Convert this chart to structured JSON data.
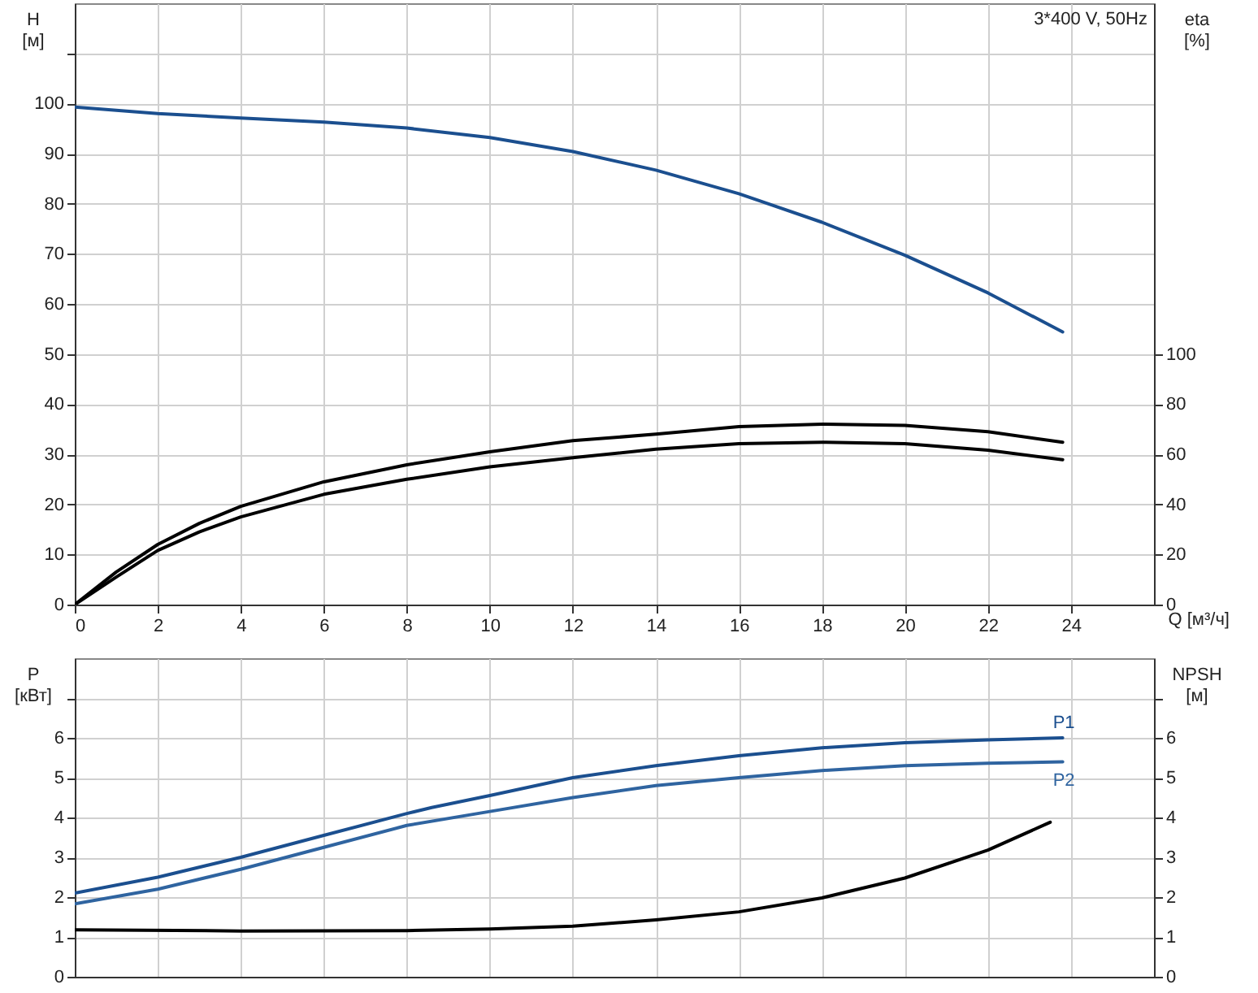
{
  "chart_data": [
    {
      "type": "line",
      "xlabel": "Q [м³/ч]",
      "ylabel": "H [м]",
      "y2label": "eta [%]",
      "xlim": [
        0,
        26
      ],
      "xticks": [
        0,
        2,
        4,
        6,
        8,
        10,
        12,
        14,
        16,
        18,
        20,
        22,
        24
      ],
      "ylim": [
        0,
        120
      ],
      "yticks": [
        0,
        10,
        20,
        30,
        40,
        50,
        60,
        70,
        80,
        90,
        100,
        {
          "value": 110,
          "label": null
        }
      ],
      "y2lim": [
        0,
        240
      ],
      "y2ticks": [
        0,
        20,
        40,
        60,
        80,
        100
      ],
      "grid": true,
      "annotations": [
        "3*400 V, 50Hz"
      ],
      "series": [
        {
          "color": "#1b4f8f",
          "x": [
            0,
            2,
            4,
            6,
            8,
            10,
            12,
            14,
            16,
            18,
            20,
            22,
            23.8
          ],
          "values": [
            99.3,
            98,
            97.1,
            96.3,
            95.1,
            93.2,
            90.4,
            86.7,
            82,
            76.3,
            69.7,
            62.2,
            54.4
          ]
        },
        {
          "color": "#000000",
          "axis": "y2",
          "x": [
            0,
            1,
            2,
            3,
            4,
            6,
            8,
            10,
            12,
            14,
            16,
            18,
            20,
            22,
            23.8
          ],
          "values": [
            0,
            13,
            24,
            32.4,
            39.2,
            49,
            55.8,
            61,
            65.4,
            68,
            71,
            72,
            71.5,
            69,
            64.8
          ]
        },
        {
          "color": "#000000",
          "axis": "y2",
          "x": [
            0,
            1,
            2,
            3,
            4,
            6,
            8,
            10,
            12,
            14,
            16,
            18,
            20,
            22,
            23.8
          ],
          "values": [
            0,
            11,
            21.6,
            29,
            35,
            44,
            50,
            55,
            58.6,
            62,
            64.2,
            64.8,
            64.2,
            61.6,
            57.8
          ]
        }
      ]
    },
    {
      "type": "line",
      "ylabel": "P [кВт]",
      "y2label": "NPSH [м]",
      "xlim": [
        0,
        26
      ],
      "xticks": [
        0,
        2,
        4,
        6,
        8,
        10,
        12,
        14,
        16,
        18,
        20,
        22,
        24
      ],
      "ylim": [
        0,
        8
      ],
      "yticks": [
        0,
        1,
        2,
        3,
        4,
        5,
        6,
        {
          "value": 7,
          "label": null
        }
      ],
      "y2lim": [
        0,
        8
      ],
      "y2ticks": [
        0,
        1,
        2,
        3,
        4,
        5,
        6,
        {
          "value": 7,
          "label": null
        }
      ],
      "grid": true,
      "tick_labels": "y",
      "series": [
        {
          "name": "P1",
          "color": "#1b4f8f",
          "x": [
            0,
            2,
            4,
            6,
            8,
            8.6,
            10,
            12,
            14,
            16,
            18,
            20,
            22,
            23.8
          ],
          "values": [
            2.1,
            2.5,
            3.0,
            3.55,
            4.1,
            4.25,
            4.55,
            5.0,
            5.3,
            5.55,
            5.75,
            5.88,
            5.95,
            6.0
          ]
        },
        {
          "name": "P2",
          "color": "#2f64a0",
          "x": [
            0,
            2,
            4,
            6,
            8,
            10,
            12,
            14,
            16,
            18,
            20,
            22,
            23.8
          ],
          "values": [
            1.83,
            2.2,
            2.7,
            3.25,
            3.8,
            4.15,
            4.5,
            4.8,
            5.0,
            5.18,
            5.3,
            5.36,
            5.4
          ]
        },
        {
          "color": "#000000",
          "axis": "y2",
          "x": [
            0,
            4,
            8,
            10,
            12,
            14,
            16,
            18,
            20,
            22,
            23.5
          ],
          "values": [
            1.18,
            1.15,
            1.16,
            1.2,
            1.27,
            1.43,
            1.63,
            1.98,
            2.48,
            3.18,
            3.88
          ]
        }
      ]
    }
  ]
}
